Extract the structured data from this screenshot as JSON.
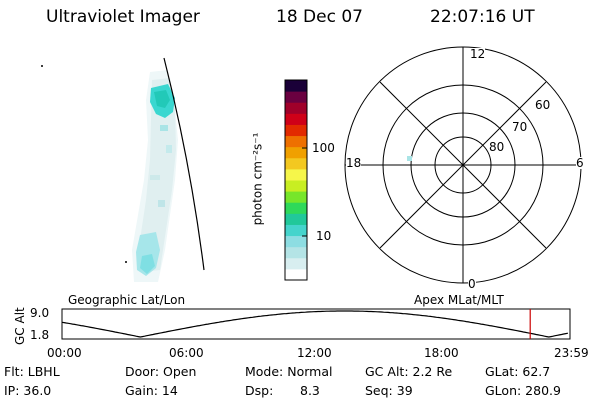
{
  "header": {
    "instrument": "Ultraviolet Imager",
    "date": "18 Dec 07",
    "time": "22:07:16 UT"
  },
  "colorbar": {
    "unit_label": "photon cm⁻²s⁻¹",
    "ticks": [
      "100",
      "10"
    ],
    "scale": "log",
    "colors": [
      "#ffffff",
      "#d8eef0",
      "#b4e4e6",
      "#8ddde2",
      "#45d4cc",
      "#21c89a",
      "#2fd95a",
      "#77e62a",
      "#c8ee22",
      "#f6f64a",
      "#f3c820",
      "#f0a000",
      "#ee7000",
      "#e22a00",
      "#cf0018",
      "#a0002a",
      "#6a0040",
      "#1a0038"
    ]
  },
  "polar_plot": {
    "mlt_labels": {
      "top": "12",
      "bottom": "0",
      "left": "18",
      "right": "6"
    },
    "lat_labels": [
      "60",
      "70",
      "80"
    ]
  },
  "image_labels": {
    "left": "Geographic Lat/Lon",
    "right": "Apex MLat/MLT"
  },
  "altitude_plot": {
    "ylabel": "GC Alt",
    "yticks": [
      "9.0",
      "1.8"
    ],
    "xticks": [
      "00:00",
      "06:00",
      "12:00",
      "18:00",
      "23:59"
    ],
    "current_time_hours": 22.12,
    "marker_color": "#cc0000"
  },
  "info": {
    "filter": "Flt: LBHL",
    "door": "Door: Open",
    "mode": "Mode: Normal",
    "gc_alt": "GC Alt: 2.2 Re",
    "glat": "GLat: 62.7",
    "ip": "IP: 36.0",
    "gain": "Gain: 14",
    "dsp_label": "Dsp:",
    "dsp_value": "8.3",
    "seq": "Seq: 39",
    "glon": "GLon: 280.9"
  }
}
